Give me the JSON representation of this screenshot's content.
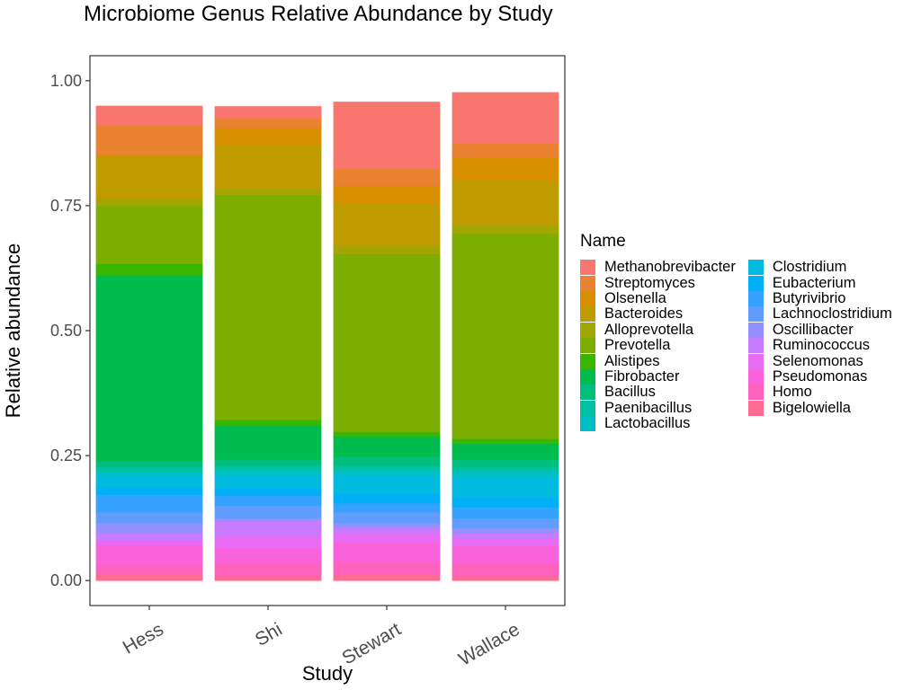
{
  "chart_data": {
    "type": "bar",
    "stacked": true,
    "title": "Microbiome Genus Relative Abundance by Study",
    "xlabel": "Study",
    "ylabel": "Relative abundance",
    "ylim": [
      -0.05,
      1.05
    ],
    "yticks": [
      0.0,
      0.25,
      0.5,
      0.75,
      1.0
    ],
    "ytick_labels": [
      "0.00",
      "0.25",
      "0.50",
      "0.75",
      "1.00"
    ],
    "grid": false,
    "legend": {
      "title": "Name",
      "placement": "right"
    },
    "categories": [
      "Hess",
      "Shi",
      "Stewart",
      "Wallace"
    ],
    "series": [
      {
        "name": "Methanobrevibacter",
        "color": "#F8766D",
        "values": [
          0.038,
          0.023,
          0.133,
          0.102
        ]
      },
      {
        "name": "Streptomyces",
        "color": "#EA8331",
        "values": [
          0.06,
          0.02,
          0.035,
          0.028
        ]
      },
      {
        "name": "Olsenella",
        "color": "#D89000",
        "values": [
          0.003,
          0.035,
          0.035,
          0.045
        ]
      },
      {
        "name": "Bacteroides",
        "color": "#C09B00",
        "values": [
          0.085,
          0.087,
          0.085,
          0.09
        ]
      },
      {
        "name": "Alloprevotella",
        "color": "#A3A500",
        "values": [
          0.015,
          0.012,
          0.017,
          0.018
        ]
      },
      {
        "name": "Prevotella",
        "color": "#7CAE00",
        "values": [
          0.115,
          0.45,
          0.355,
          0.41
        ]
      },
      {
        "name": "Alistipes",
        "color": "#39B600",
        "values": [
          0.023,
          0.012,
          0.01,
          0.01
        ]
      },
      {
        "name": "Fibrobacter",
        "color": "#00BB4E",
        "values": [
          0.372,
          0.068,
          0.04,
          0.032
        ]
      },
      {
        "name": "Bacillus",
        "color": "#00BF7D",
        "values": [
          0.012,
          0.012,
          0.018,
          0.015
        ]
      },
      {
        "name": "Paenibacillus",
        "color": "#00C1A3",
        "values": [
          0.01,
          0.01,
          0.01,
          0.01
        ]
      },
      {
        "name": "Lactobacillus",
        "color": "#00BFC4",
        "values": [
          0.008,
          0.01,
          0.01,
          0.01
        ]
      },
      {
        "name": "Clostridium",
        "color": "#00BAE0",
        "values": [
          0.022,
          0.025,
          0.035,
          0.04
        ]
      },
      {
        "name": "Eubacterium",
        "color": "#00B0F6",
        "values": [
          0.015,
          0.015,
          0.02,
          0.02
        ]
      },
      {
        "name": "Butyrivibrio",
        "color": "#35A2FF",
        "values": [
          0.035,
          0.02,
          0.018,
          0.022
        ]
      },
      {
        "name": "Lachnoclostridium",
        "color": "#619CFF",
        "values": [
          0.022,
          0.025,
          0.022,
          0.02
        ]
      },
      {
        "name": "Oscillibacter",
        "color": "#9590FF",
        "values": [
          0.02,
          0.005,
          0.01,
          0.01
        ]
      },
      {
        "name": "Ruminococcus",
        "color": "#C77CFF",
        "values": [
          0.013,
          0.03,
          0.01,
          0.01
        ]
      },
      {
        "name": "Selenomonas",
        "color": "#E76BF3",
        "values": [
          0.01,
          0.025,
          0.018,
          0.015
        ]
      },
      {
        "name": "Pseudomonas",
        "color": "#FA62DB",
        "values": [
          0.04,
          0.03,
          0.04,
          0.035
        ]
      },
      {
        "name": "Homo",
        "color": "#FF62BC",
        "values": [
          0.02,
          0.025,
          0.025,
          0.025
        ]
      },
      {
        "name": "Bigelowiella",
        "color": "#FF6C91",
        "values": [
          0.012,
          0.01,
          0.012,
          0.01
        ]
      }
    ]
  }
}
